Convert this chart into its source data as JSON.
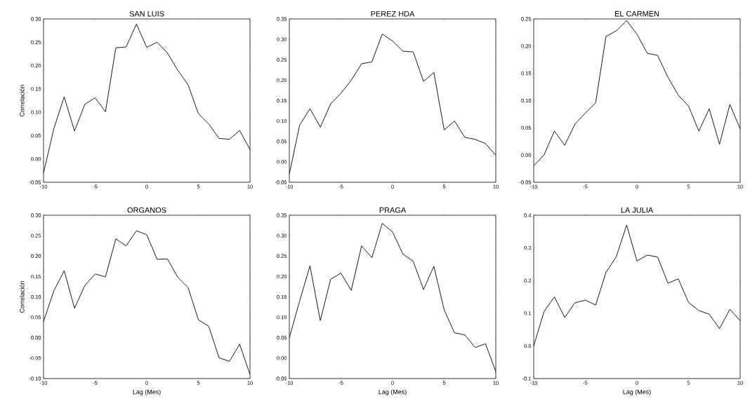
{
  "chart_data": [
    {
      "type": "line",
      "title": "SAN LUIS",
      "ylabel": "Correlación",
      "color": "#000000",
      "x": [
        -10,
        -9,
        -8,
        -7,
        -6,
        -5,
        -4,
        -3,
        -2,
        -1,
        0,
        1,
        2,
        3,
        4,
        5,
        6,
        7,
        8,
        9,
        10
      ],
      "values": [
        -0.03,
        0.065,
        0.133,
        0.06,
        0.117,
        0.131,
        0.101,
        0.238,
        0.24,
        0.289,
        0.239,
        0.25,
        0.227,
        0.19,
        0.159,
        0.097,
        0.075,
        0.044,
        0.042,
        0.061,
        0.02
      ],
      "xlim": [
        -10,
        10
      ],
      "xticks": [
        -10,
        -5,
        0,
        5,
        10
      ],
      "ylim": [
        -0.05,
        0.3
      ],
      "yticks": [
        {
          "value": -0.05,
          "label": "-0.05"
        },
        {
          "value": 0,
          "label": "0.00"
        },
        {
          "value": 0.05,
          "label": "0.05"
        },
        {
          "value": 0.1,
          "label": "0.10"
        },
        {
          "value": 0.15,
          "label": "0.15"
        },
        {
          "value": 0.2,
          "label": "0.20"
        },
        {
          "value": 0.25,
          "label": "0.25"
        },
        {
          "value": 0.3,
          "label": "0.30"
        }
      ]
    },
    {
      "type": "line",
      "title": "PEREZ HDA",
      "color": "#000000",
      "x": [
        -10,
        -9,
        -8,
        -7,
        -6,
        -5,
        -4,
        -3,
        -2,
        -1,
        0,
        1,
        2,
        3,
        4,
        5,
        6,
        7,
        8,
        9,
        10
      ],
      "values": [
        -0.03,
        0.09,
        0.13,
        0.085,
        0.142,
        0.168,
        0.2,
        0.24,
        0.245,
        0.313,
        0.296,
        0.271,
        0.269,
        0.197,
        0.219,
        0.078,
        0.1,
        0.06,
        0.055,
        0.045,
        0.016
      ],
      "xlim": [
        -10,
        10
      ],
      "xticks": [
        -10,
        -5,
        0,
        5,
        10
      ],
      "ylim": [
        -0.05,
        0.35
      ],
      "yticks": [
        {
          "value": -0.05,
          "label": "-0.05"
        },
        {
          "value": 0,
          "label": "0.00"
        },
        {
          "value": 0.05,
          "label": "0.05"
        },
        {
          "value": 0.1,
          "label": "0.10"
        },
        {
          "value": 0.15,
          "label": "0.15"
        },
        {
          "value": 0.2,
          "label": "0.20"
        },
        {
          "value": 0.25,
          "label": "0.25"
        },
        {
          "value": 0.3,
          "label": "0.30"
        },
        {
          "value": 0.35,
          "label": "0.35"
        }
      ]
    },
    {
      "type": "line",
      "title": "EL CARMEN",
      "color": "#000000",
      "x": [
        -10,
        -9,
        -8,
        -7,
        -6,
        -5,
        -4,
        -3,
        -2,
        -1,
        0,
        1,
        2,
        3,
        4,
        5,
        6,
        7,
        8,
        9,
        10
      ],
      "values": [
        -0.02,
        0.0,
        0.044,
        0.018,
        0.057,
        0.077,
        0.096,
        0.218,
        0.228,
        0.247,
        0.222,
        0.187,
        0.183,
        0.143,
        0.11,
        0.09,
        0.044,
        0.085,
        0.02,
        0.093,
        0.048
      ],
      "xlim": [
        -10,
        10
      ],
      "xticks": [
        -10,
        -5,
        0,
        5,
        10
      ],
      "ylim": [
        -0.05,
        0.25
      ],
      "yticks": [
        {
          "value": -0.05,
          "label": "-0.05"
        },
        {
          "value": 0,
          "label": "0.00"
        },
        {
          "value": 0.05,
          "label": "0.05"
        },
        {
          "value": 0.1,
          "label": "0.10"
        },
        {
          "value": 0.15,
          "label": "0.15"
        },
        {
          "value": 0.2,
          "label": "0.20"
        },
        {
          "value": 0.25,
          "label": "0.25"
        }
      ]
    },
    {
      "type": "line",
      "title": "ORGANOS",
      "xlabel": "Lag (Mes)",
      "ylabel": "Correlación",
      "color": "#000000",
      "x": [
        -10,
        -9,
        -8,
        -7,
        -6,
        -5,
        -4,
        -3,
        -2,
        -1,
        0,
        1,
        2,
        3,
        4,
        5,
        6,
        7,
        8,
        9,
        10
      ],
      "values": [
        0.04,
        0.115,
        0.164,
        0.072,
        0.128,
        0.156,
        0.149,
        0.242,
        0.225,
        0.262,
        0.252,
        0.192,
        0.193,
        0.148,
        0.123,
        0.044,
        0.028,
        -0.049,
        -0.058,
        -0.016,
        -0.09
      ],
      "xlim": [
        -10,
        10
      ],
      "xticks": [
        -10,
        -5,
        0,
        5,
        10
      ],
      "ylim": [
        -0.1,
        0.3
      ],
      "yticks": [
        {
          "value": -0.1,
          "label": "-0.10"
        },
        {
          "value": -0.05,
          "label": "-0.05"
        },
        {
          "value": 0,
          "label": "0.00"
        },
        {
          "value": 0.05,
          "label": "0.05"
        },
        {
          "value": 0.1,
          "label": "0.10"
        },
        {
          "value": 0.15,
          "label": "0.15"
        },
        {
          "value": 0.2,
          "label": "0.20"
        },
        {
          "value": 0.25,
          "label": "0.25"
        },
        {
          "value": 0.3,
          "label": "0.30"
        }
      ]
    },
    {
      "type": "line",
      "title": "PRAGA",
      "xlabel": "Lag (Mes)",
      "color": "#000000",
      "x": [
        -10,
        -9,
        -8,
        -7,
        -6,
        -5,
        -4,
        -3,
        -2,
        -1,
        0,
        1,
        2,
        3,
        4,
        5,
        6,
        7,
        8,
        9,
        10
      ],
      "values": [
        0.05,
        0.14,
        0.226,
        0.092,
        0.193,
        0.208,
        0.166,
        0.275,
        0.246,
        0.33,
        0.309,
        0.255,
        0.237,
        0.168,
        0.225,
        0.118,
        0.062,
        0.057,
        0.026,
        0.035,
        -0.033
      ],
      "xlim": [
        -10,
        10
      ],
      "xticks": [
        -10,
        -5,
        0,
        5,
        10
      ],
      "ylim": [
        -0.05,
        0.35
      ],
      "yticks": [
        {
          "value": -0.05,
          "label": "-0.05"
        },
        {
          "value": 0,
          "label": "0.00"
        },
        {
          "value": 0.05,
          "label": "0.05"
        },
        {
          "value": 0.1,
          "label": "0.10"
        },
        {
          "value": 0.15,
          "label": "0.15"
        },
        {
          "value": 0.2,
          "label": "0.20"
        },
        {
          "value": 0.25,
          "label": "0.25"
        },
        {
          "value": 0.3,
          "label": "0.30"
        },
        {
          "value": 0.35,
          "label": "0.35"
        }
      ]
    },
    {
      "type": "line",
      "title": "LA JULIA",
      "xlabel": "Lag (Mes)",
      "color": "#000000",
      "x": [
        -10,
        -9,
        -8,
        -7,
        -6,
        -5,
        -4,
        -3,
        -2,
        -1,
        0,
        1,
        2,
        3,
        4,
        5,
        6,
        7,
        8,
        9,
        10
      ],
      "values": [
        0.0,
        0.105,
        0.15,
        0.087,
        0.132,
        0.14,
        0.125,
        0.225,
        0.273,
        0.37,
        0.26,
        0.278,
        0.272,
        0.192,
        0.205,
        0.133,
        0.108,
        0.097,
        0.053,
        0.112,
        0.077
      ],
      "xlim": [
        -10,
        10
      ],
      "xticks": [
        -10,
        -5,
        0,
        5,
        10
      ],
      "ylim": [
        -0.1,
        0.4
      ],
      "yticks": [
        -0.1,
        {
          "value": 0,
          "label": "0.0"
        },
        0.1,
        0.2,
        0.3,
        0.4
      ]
    }
  ]
}
